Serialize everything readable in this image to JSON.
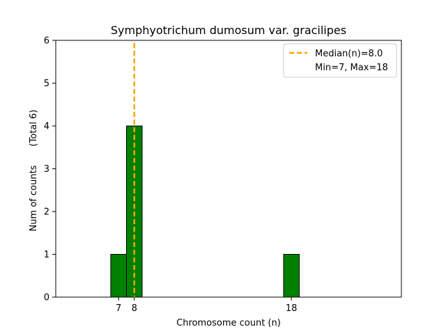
{
  "chart_data": {
    "type": "bar",
    "title": "Symphyotrichum dumosum var. gracilipes",
    "xlabel": "Chromosome count (n)",
    "ylabel": "Num of counts",
    "ylabel_note": "(Total 6)",
    "xlim": [
      3,
      25
    ],
    "ylim": [
      0,
      6
    ],
    "x_ticks": [
      7,
      8,
      18
    ],
    "y_ticks": [
      0,
      1,
      2,
      3,
      4,
      5,
      6
    ],
    "bar_width": 1,
    "bar_color": "#008000",
    "bar_edge_color": "#000000",
    "bars": [
      {
        "x": 7,
        "value": 1
      },
      {
        "x": 8,
        "value": 4
      },
      {
        "x": 18,
        "value": 1
      }
    ],
    "median_line": {
      "x": 8.0,
      "color": "#ffa500",
      "style": "dashed"
    },
    "legend": {
      "position": "top-right",
      "entries": [
        "Median(n)=8.0",
        "Min=7, Max=18"
      ]
    },
    "grid": false
  }
}
